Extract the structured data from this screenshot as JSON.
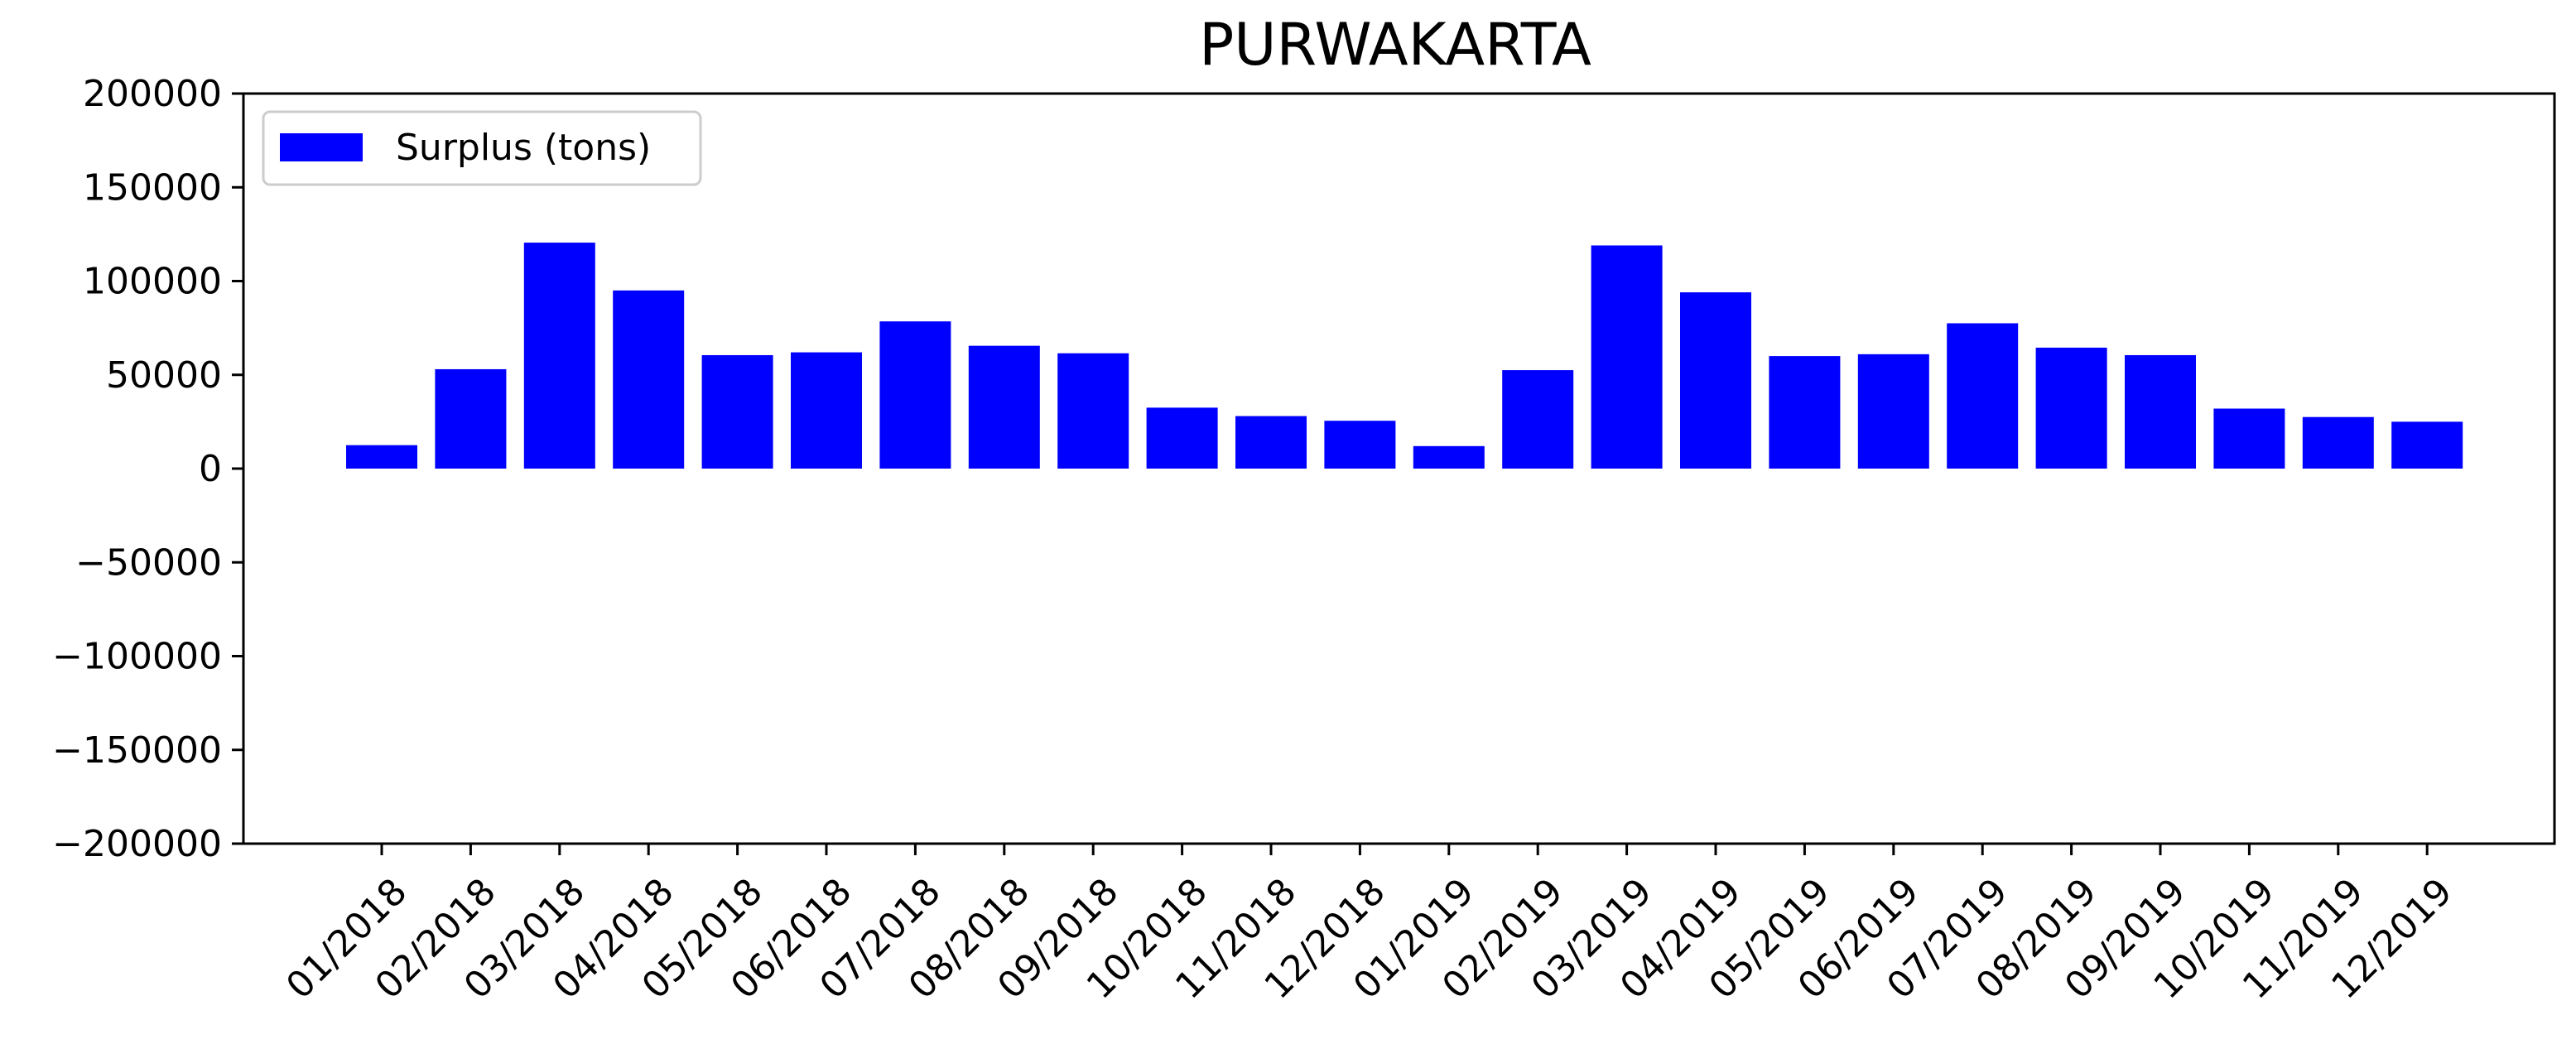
{
  "chart_data": {
    "type": "bar",
    "title": "PURWAKARTA",
    "xlabel": "",
    "ylabel": "",
    "ylim": [
      -200000,
      200000
    ],
    "y_ticks": [
      {
        "value": 200000,
        "label": "200000"
      },
      {
        "value": 150000,
        "label": "150000"
      },
      {
        "value": 100000,
        "label": "100000"
      },
      {
        "value": 50000,
        "label": "50000"
      },
      {
        "value": 0,
        "label": "0"
      },
      {
        "value": -50000,
        "label": "−50000"
      },
      {
        "value": -100000,
        "label": "−100000"
      },
      {
        "value": -150000,
        "label": "−150000"
      },
      {
        "value": -200000,
        "label": "−200000"
      }
    ],
    "categories": [
      "01/2018",
      "02/2018",
      "03/2018",
      "04/2018",
      "05/2018",
      "06/2018",
      "07/2018",
      "08/2018",
      "09/2018",
      "10/2018",
      "11/2018",
      "12/2018",
      "01/2019",
      "02/2019",
      "03/2019",
      "04/2019",
      "05/2019",
      "06/2019",
      "07/2019",
      "08/2019",
      "09/2019",
      "10/2019",
      "11/2019",
      "12/2019"
    ],
    "series": [
      {
        "name": "Surplus (tons)",
        "color": "#0000ff",
        "values": [
          12500,
          53000,
          120500,
          95000,
          60500,
          62000,
          78500,
          65500,
          61500,
          32500,
          28000,
          25500,
          12000,
          52500,
          119000,
          94000,
          60000,
          61000,
          77500,
          64500,
          60500,
          32000,
          27500,
          25000
        ]
      }
    ],
    "legend_position": "upper-left",
    "grid": false,
    "x_tick_rotation": 45
  }
}
